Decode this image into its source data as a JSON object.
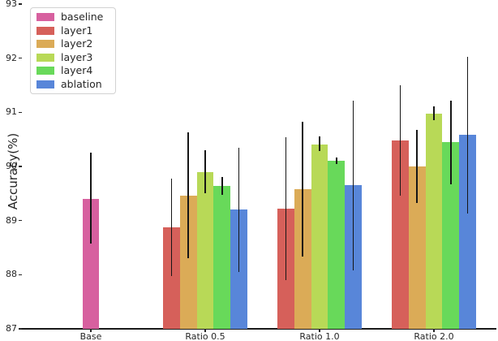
{
  "chart_data": {
    "type": "bar",
    "title": "",
    "xlabel": "",
    "ylabel": "Accuracy(%)",
    "ylim": [
      87,
      93
    ],
    "yticks": [
      87,
      88,
      89,
      90,
      91,
      92,
      93
    ],
    "categories": [
      "Base",
      "Ratio 0.5",
      "Ratio 1.0",
      "Ratio 2.0"
    ],
    "grid": false,
    "legend_position": "upper-left",
    "axis_color": "#1a1a1a",
    "error_bar_color": "#161616",
    "text_color": "#262626",
    "series": [
      {
        "name": "baseline",
        "color": "#d7609f",
        "values": [
          89.4,
          null,
          null,
          null
        ],
        "err_lo": [
          88.57,
          null,
          null,
          null
        ],
        "err_hi": [
          90.25,
          null,
          null,
          null
        ]
      },
      {
        "name": "layer1",
        "color": "#d6605a",
        "values": [
          null,
          88.88,
          89.22,
          90.48
        ],
        "err_lo": [
          null,
          87.98,
          87.9,
          89.46
        ],
        "err_hi": [
          null,
          89.78,
          90.54,
          91.5
        ]
      },
      {
        "name": "layer2",
        "color": "#dbab57",
        "values": [
          null,
          89.46,
          89.58,
          90.0
        ],
        "err_lo": [
          null,
          88.3,
          88.33,
          89.33
        ],
        "err_hi": [
          null,
          90.63,
          90.83,
          90.67
        ]
      },
      {
        "name": "layer3",
        "color": "#b8d957",
        "values": [
          null,
          89.89,
          90.41,
          90.98
        ],
        "err_lo": [
          null,
          89.5,
          90.29,
          90.86
        ],
        "err_hi": [
          null,
          90.3,
          90.55,
          91.11
        ]
      },
      {
        "name": "layer4",
        "color": "#68d95a",
        "values": [
          null,
          89.64,
          90.1,
          90.45
        ],
        "err_lo": [
          null,
          89.48,
          90.04,
          89.67
        ],
        "err_hi": [
          null,
          89.8,
          90.17,
          91.22
        ]
      },
      {
        "name": "ablation",
        "color": "#5886d9",
        "values": [
          null,
          89.2,
          89.65,
          90.58
        ],
        "err_lo": [
          null,
          88.05,
          88.08,
          89.13
        ],
        "err_hi": [
          null,
          90.35,
          91.22,
          92.02
        ]
      }
    ]
  }
}
